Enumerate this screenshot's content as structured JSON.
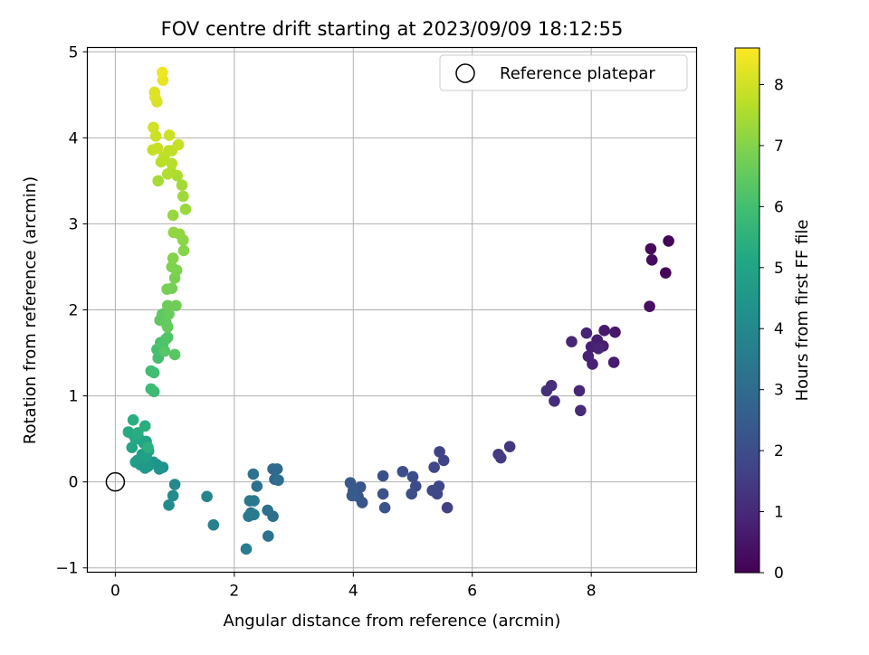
{
  "chart_data": {
    "type": "scatter",
    "title": "FOV centre drift starting at 2023/09/09 18:12:55",
    "xlabel": "Angular distance from reference (arcmin)",
    "ylabel": "Rotation from reference (arcmin)",
    "colorbar_label": "Hours from first FF file",
    "xlim": [
      -0.47,
      9.77
    ],
    "ylim": [
      -1.05,
      5.05
    ],
    "x_ticks": [
      0,
      2,
      4,
      6,
      8
    ],
    "x_tick_labels": [
      "0",
      "2",
      "4",
      "6",
      "8"
    ],
    "y_ticks": [
      -1,
      0,
      1,
      2,
      3,
      4,
      5
    ],
    "y_tick_labels": [
      "−1",
      "0",
      "1",
      "2",
      "3",
      "4",
      "5"
    ],
    "colorbar_ticks": [
      0,
      1,
      2,
      3,
      4,
      5,
      6,
      7,
      8
    ],
    "colorbar_tick_labels": [
      "0",
      "1",
      "2",
      "3",
      "4",
      "5",
      "6",
      "7",
      "8"
    ],
    "colorbar_range": [
      0,
      8.6
    ],
    "colormap": "viridis",
    "grid": true,
    "legend": {
      "position": "top-right",
      "label": "Reference platepar"
    },
    "reference_point": {
      "x": 0,
      "y": 0
    },
    "points": [
      {
        "x": 9.3,
        "y": 2.8,
        "c": 0.05
      },
      {
        "x": 9.25,
        "y": 2.43,
        "c": 0.12
      },
      {
        "x": 9.0,
        "y": 2.71,
        "c": 0.2
      },
      {
        "x": 9.02,
        "y": 2.58,
        "c": 0.28
      },
      {
        "x": 8.98,
        "y": 2.04,
        "c": 0.35
      },
      {
        "x": 8.4,
        "y": 1.74,
        "c": 0.55
      },
      {
        "x": 8.22,
        "y": 1.76,
        "c": 0.6
      },
      {
        "x": 8.38,
        "y": 1.39,
        "c": 0.65
      },
      {
        "x": 8.1,
        "y": 1.65,
        "c": 0.7
      },
      {
        "x": 8.2,
        "y": 1.58,
        "c": 0.72
      },
      {
        "x": 8.0,
        "y": 1.57,
        "c": 0.75
      },
      {
        "x": 8.02,
        "y": 1.37,
        "c": 0.8
      },
      {
        "x": 7.95,
        "y": 1.46,
        "c": 0.82
      },
      {
        "x": 7.92,
        "y": 1.73,
        "c": 0.85
      },
      {
        "x": 8.12,
        "y": 1.55,
        "c": 0.88
      },
      {
        "x": 7.67,
        "y": 1.63,
        "c": 0.92
      },
      {
        "x": 7.8,
        "y": 1.06,
        "c": 0.98
      },
      {
        "x": 7.82,
        "y": 0.83,
        "c": 1.02
      },
      {
        "x": 7.38,
        "y": 0.94,
        "c": 1.08
      },
      {
        "x": 7.33,
        "y": 1.12,
        "c": 1.12
      },
      {
        "x": 7.25,
        "y": 1.06,
        "c": 1.18
      },
      {
        "x": 6.63,
        "y": 0.41,
        "c": 1.35
      },
      {
        "x": 6.44,
        "y": 0.32,
        "c": 1.4
      },
      {
        "x": 6.48,
        "y": 0.28,
        "c": 1.45
      },
      {
        "x": 5.58,
        "y": -0.3,
        "c": 1.65
      },
      {
        "x": 5.45,
        "y": 0.35,
        "c": 1.7
      },
      {
        "x": 5.52,
        "y": 0.25,
        "c": 1.74
      },
      {
        "x": 5.36,
        "y": 0.17,
        "c": 1.78
      },
      {
        "x": 5.44,
        "y": -0.05,
        "c": 1.82
      },
      {
        "x": 5.41,
        "y": -0.14,
        "c": 1.86
      },
      {
        "x": 5.33,
        "y": -0.1,
        "c": 1.9
      },
      {
        "x": 5.05,
        "y": -0.05,
        "c": 1.95
      },
      {
        "x": 5.0,
        "y": 0.06,
        "c": 2.0
      },
      {
        "x": 4.98,
        "y": -0.14,
        "c": 2.04
      },
      {
        "x": 4.83,
        "y": 0.12,
        "c": 2.08
      },
      {
        "x": 4.5,
        "y": 0.07,
        "c": 2.12
      },
      {
        "x": 4.5,
        "y": -0.14,
        "c": 2.16
      },
      {
        "x": 4.53,
        "y": -0.3,
        "c": 2.2
      },
      {
        "x": 4.15,
        "y": -0.24,
        "c": 2.25
      },
      {
        "x": 4.12,
        "y": -0.06,
        "c": 2.3
      },
      {
        "x": 4.08,
        "y": -0.17,
        "c": 2.34
      },
      {
        "x": 4.0,
        "y": -0.1,
        "c": 2.38
      },
      {
        "x": 3.95,
        "y": -0.01,
        "c": 2.42
      },
      {
        "x": 3.98,
        "y": -0.16,
        "c": 2.46
      },
      {
        "x": 2.68,
        "y": 0.03,
        "c": 2.9
      },
      {
        "x": 2.72,
        "y": 0.15,
        "c": 2.95
      },
      {
        "x": 2.65,
        "y": 0.15,
        "c": 3.0
      },
      {
        "x": 2.74,
        "y": 0.02,
        "c": 3.05
      },
      {
        "x": 2.65,
        "y": -0.4,
        "c": 3.1
      },
      {
        "x": 2.56,
        "y": -0.33,
        "c": 3.15
      },
      {
        "x": 2.57,
        "y": -0.63,
        "c": 3.2
      },
      {
        "x": 2.38,
        "y": -0.05,
        "c": 3.25
      },
      {
        "x": 2.32,
        "y": 0.09,
        "c": 3.3
      },
      {
        "x": 2.28,
        "y": -0.36,
        "c": 3.35
      },
      {
        "x": 2.26,
        "y": -0.22,
        "c": 3.4
      },
      {
        "x": 2.33,
        "y": -0.22,
        "c": 3.45
      },
      {
        "x": 2.24,
        "y": -0.4,
        "c": 3.5
      },
      {
        "x": 2.33,
        "y": -0.38,
        "c": 3.55
      },
      {
        "x": 2.2,
        "y": -0.78,
        "c": 3.6
      },
      {
        "x": 1.65,
        "y": -0.5,
        "c": 3.75
      },
      {
        "x": 1.54,
        "y": -0.17,
        "c": 3.85
      },
      {
        "x": 1.0,
        "y": -0.03,
        "c": 4.0
      },
      {
        "x": 0.97,
        "y": -0.16,
        "c": 4.05
      },
      {
        "x": 0.9,
        "y": -0.27,
        "c": 4.1
      },
      {
        "x": 0.8,
        "y": 0.17,
        "c": 4.3
      },
      {
        "x": 0.7,
        "y": 0.2,
        "c": 4.35
      },
      {
        "x": 0.74,
        "y": 0.15,
        "c": 4.4
      },
      {
        "x": 0.64,
        "y": 0.23,
        "c": 4.45
      },
      {
        "x": 0.58,
        "y": 0.2,
        "c": 4.5
      },
      {
        "x": 0.5,
        "y": 0.16,
        "c": 4.55
      },
      {
        "x": 0.55,
        "y": 0.18,
        "c": 4.6
      },
      {
        "x": 0.42,
        "y": 0.2,
        "c": 4.65
      },
      {
        "x": 0.37,
        "y": 0.25,
        "c": 4.7
      },
      {
        "x": 0.34,
        "y": 0.23,
        "c": 4.75
      },
      {
        "x": 0.45,
        "y": 0.32,
        "c": 4.8
      },
      {
        "x": 0.52,
        "y": 0.3,
        "c": 4.85
      },
      {
        "x": 0.56,
        "y": 0.36,
        "c": 4.9
      },
      {
        "x": 0.48,
        "y": 0.45,
        "c": 4.95
      },
      {
        "x": 0.52,
        "y": 0.47,
        "c": 5.0
      },
      {
        "x": 0.4,
        "y": 0.5,
        "c": 5.05
      },
      {
        "x": 0.28,
        "y": 0.4,
        "c": 5.1
      },
      {
        "x": 0.34,
        "y": 0.5,
        "c": 5.15
      },
      {
        "x": 0.3,
        "y": 0.55,
        "c": 5.2
      },
      {
        "x": 0.22,
        "y": 0.58,
        "c": 5.25
      },
      {
        "x": 0.38,
        "y": 0.57,
        "c": 5.3
      },
      {
        "x": 0.3,
        "y": 0.72,
        "c": 5.35
      },
      {
        "x": 0.5,
        "y": 0.65,
        "c": 5.4
      },
      {
        "x": 0.55,
        "y": 0.4,
        "c": 5.45
      },
      {
        "x": 0.65,
        "y": 1.05,
        "c": 5.8
      },
      {
        "x": 0.6,
        "y": 1.08,
        "c": 5.85
      },
      {
        "x": 0.65,
        "y": 1.27,
        "c": 5.9
      },
      {
        "x": 0.6,
        "y": 1.29,
        "c": 5.95
      },
      {
        "x": 0.72,
        "y": 1.44,
        "c": 6.0
      },
      {
        "x": 0.7,
        "y": 1.54,
        "c": 6.05
      },
      {
        "x": 0.76,
        "y": 1.62,
        "c": 6.1
      },
      {
        "x": 0.8,
        "y": 1.6,
        "c": 6.15
      },
      {
        "x": 0.85,
        "y": 1.66,
        "c": 6.2
      },
      {
        "x": 0.88,
        "y": 1.68,
        "c": 6.25
      },
      {
        "x": 0.83,
        "y": 1.52,
        "c": 6.3
      },
      {
        "x": 1.0,
        "y": 1.48,
        "c": 6.35
      },
      {
        "x": 0.75,
        "y": 1.88,
        "c": 6.4
      },
      {
        "x": 0.79,
        "y": 1.95,
        "c": 6.45
      },
      {
        "x": 0.85,
        "y": 1.85,
        "c": 6.5
      },
      {
        "x": 0.88,
        "y": 1.8,
        "c": 6.55
      },
      {
        "x": 0.9,
        "y": 1.95,
        "c": 6.6
      },
      {
        "x": 0.88,
        "y": 2.05,
        "c": 6.65
      },
      {
        "x": 1.02,
        "y": 2.05,
        "c": 6.7
      },
      {
        "x": 0.95,
        "y": 2.25,
        "c": 6.75
      },
      {
        "x": 0.87,
        "y": 2.24,
        "c": 6.8
      },
      {
        "x": 1.0,
        "y": 2.37,
        "c": 6.85
      },
      {
        "x": 1.03,
        "y": 2.46,
        "c": 6.9
      },
      {
        "x": 0.95,
        "y": 2.5,
        "c": 6.95
      },
      {
        "x": 0.97,
        "y": 2.6,
        "c": 7.0
      },
      {
        "x": 1.15,
        "y": 2.69,
        "c": 7.05
      },
      {
        "x": 1.14,
        "y": 2.81,
        "c": 7.1
      },
      {
        "x": 1.08,
        "y": 2.88,
        "c": 7.15
      },
      {
        "x": 0.98,
        "y": 2.9,
        "c": 7.2
      },
      {
        "x": 0.97,
        "y": 3.1,
        "c": 7.25
      },
      {
        "x": 1.18,
        "y": 3.17,
        "c": 7.3
      },
      {
        "x": 1.14,
        "y": 3.32,
        "c": 7.35
      },
      {
        "x": 1.12,
        "y": 3.45,
        "c": 7.4
      },
      {
        "x": 0.72,
        "y": 3.5,
        "c": 7.45
      },
      {
        "x": 1.04,
        "y": 3.56,
        "c": 7.5
      },
      {
        "x": 0.94,
        "y": 3.6,
        "c": 7.55
      },
      {
        "x": 0.88,
        "y": 3.58,
        "c": 7.6
      },
      {
        "x": 0.95,
        "y": 3.7,
        "c": 7.65
      },
      {
        "x": 0.77,
        "y": 3.72,
        "c": 7.7
      },
      {
        "x": 0.82,
        "y": 3.78,
        "c": 7.72
      },
      {
        "x": 0.95,
        "y": 3.85,
        "c": 7.75
      },
      {
        "x": 0.9,
        "y": 3.85,
        "c": 7.78
      },
      {
        "x": 0.63,
        "y": 3.86,
        "c": 7.82
      },
      {
        "x": 1.06,
        "y": 3.92,
        "c": 7.85
      },
      {
        "x": 0.71,
        "y": 3.88,
        "c": 7.88
      },
      {
        "x": 0.68,
        "y": 4.02,
        "c": 7.92
      },
      {
        "x": 0.91,
        "y": 4.03,
        "c": 7.96
      },
      {
        "x": 0.64,
        "y": 4.12,
        "c": 8.0
      },
      {
        "x": 0.7,
        "y": 4.42,
        "c": 8.1
      },
      {
        "x": 0.67,
        "y": 4.47,
        "c": 8.15
      },
      {
        "x": 0.66,
        "y": 4.53,
        "c": 8.2
      },
      {
        "x": 0.8,
        "y": 4.67,
        "c": 8.3
      },
      {
        "x": 0.79,
        "y": 4.76,
        "c": 8.4
      }
    ]
  }
}
